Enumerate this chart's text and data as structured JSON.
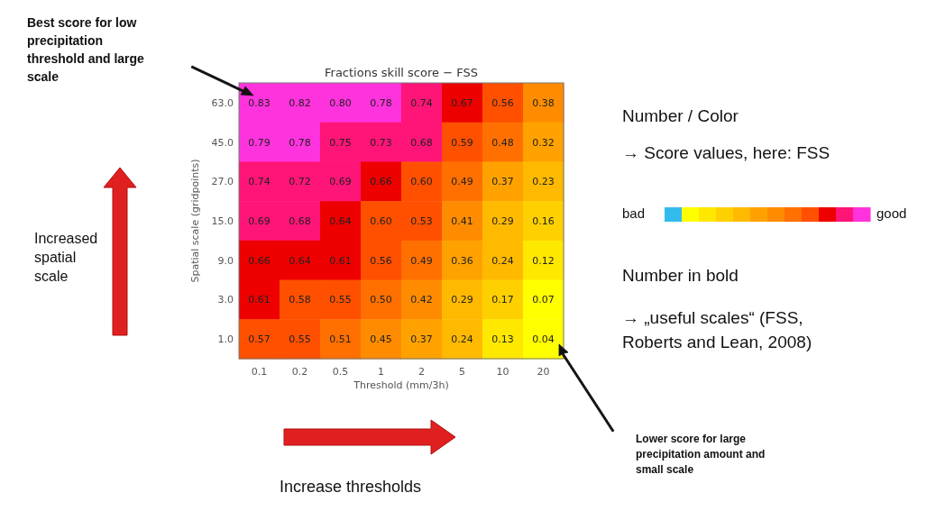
{
  "chart_data": {
    "type": "heatmap",
    "title": "Fractions skill score − FSS",
    "xlabel": "Threshold (mm/3h)",
    "ylabel": "Spatial scale (gridpoints)",
    "categories": [
      "0.1",
      "0.2",
      "0.5",
      "1",
      "2",
      "5",
      "10",
      "20"
    ],
    "y_categories": [
      "63.0",
      "45.0",
      "27.0",
      "15.0",
      "9.0",
      "3.0",
      "1.0"
    ],
    "cells": [
      [
        0.83,
        0.82,
        0.8,
        0.78,
        0.74,
        0.67,
        0.56,
        0.38
      ],
      [
        0.79,
        0.78,
        0.75,
        0.73,
        0.68,
        0.59,
        0.48,
        0.32
      ],
      [
        0.74,
        0.72,
        0.69,
        0.66,
        0.6,
        0.49,
        0.37,
        0.23
      ],
      [
        0.69,
        0.68,
        0.64,
        0.6,
        0.53,
        0.41,
        0.29,
        0.16
      ],
      [
        0.66,
        0.64,
        0.61,
        0.56,
        0.49,
        0.36,
        0.24,
        0.12
      ],
      [
        0.61,
        0.58,
        0.55,
        0.5,
        0.42,
        0.29,
        0.17,
        0.07
      ],
      [
        0.57,
        0.55,
        0.51,
        0.45,
        0.37,
        0.24,
        0.13,
        0.04
      ]
    ],
    "cell_labels": [
      [
        "0.83",
        "0.82",
        "0.80",
        "0.78",
        "0.74",
        "0.67",
        "0.56",
        "0.38"
      ],
      [
        "0.79",
        "0.78",
        "0.75",
        "0.73",
        "0.68",
        "0.59",
        "0.48",
        "0.32"
      ],
      [
        "0.74",
        "0.72",
        "0.69",
        "0.66",
        "0.60",
        "0.49",
        "0.37",
        "0.23"
      ],
      [
        "0.69",
        "0.68",
        "0.64",
        "0.60",
        "0.53",
        "0.41",
        "0.29",
        "0.16"
      ],
      [
        "0.66",
        "0.64",
        "0.61",
        "0.56",
        "0.49",
        "0.36",
        "0.24",
        "0.12"
      ],
      [
        "0.61",
        "0.58",
        "0.55",
        "0.50",
        "0.42",
        "0.29",
        "0.17",
        "0.07"
      ],
      [
        "0.57",
        "0.55",
        "0.51",
        "0.45",
        "0.37",
        "0.24",
        "0.13",
        "0.04"
      ]
    ],
    "annotations": [
      "Best score for low precipitation threshold and large scale",
      "Lower score for large precipitation amount and small scale",
      "Increased spatial scale",
      "Increase thresholds",
      "Number / Color",
      "→ Score values, here: FSS",
      "bad",
      "good",
      "Number in bold",
      "→ „useful scales“ (FSS, Roberts and Lean, 2008)"
    ]
  }
}
